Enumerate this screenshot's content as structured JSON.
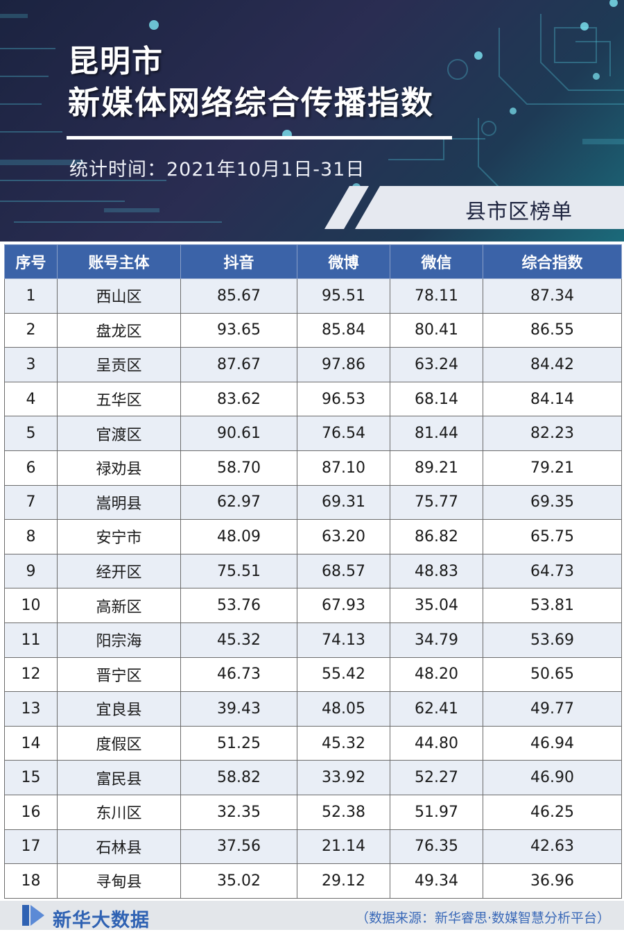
{
  "header": {
    "title_line1": "昆明市",
    "title_line2": "新媒体网络综合传播指数",
    "period": "统计时间：2021年10月1日-31日",
    "rank_label": "县市区榜单"
  },
  "table": {
    "columns": [
      "序号",
      "账号主体",
      "抖音",
      "微博",
      "微信",
      "综合指数"
    ],
    "rows": [
      [
        "1",
        "西山区",
        "85.67",
        "95.51",
        "78.11",
        "87.34"
      ],
      [
        "2",
        "盘龙区",
        "93.65",
        "85.84",
        "80.41",
        "86.55"
      ],
      [
        "3",
        "呈贡区",
        "87.67",
        "97.86",
        "63.24",
        "84.42"
      ],
      [
        "4",
        "五华区",
        "83.62",
        "96.53",
        "68.14",
        "84.14"
      ],
      [
        "5",
        "官渡区",
        "90.61",
        "76.54",
        "81.44",
        "82.23"
      ],
      [
        "6",
        "禄劝县",
        "58.70",
        "87.10",
        "89.21",
        "79.21"
      ],
      [
        "7",
        "嵩明县",
        "62.97",
        "69.31",
        "75.77",
        "69.35"
      ],
      [
        "8",
        "安宁市",
        "48.09",
        "63.20",
        "86.82",
        "65.75"
      ],
      [
        "9",
        "经开区",
        "75.51",
        "68.57",
        "48.83",
        "64.73"
      ],
      [
        "10",
        "高新区",
        "53.76",
        "67.93",
        "35.04",
        "53.81"
      ],
      [
        "11",
        "阳宗海",
        "45.32",
        "74.13",
        "34.79",
        "53.69"
      ],
      [
        "12",
        "晋宁区",
        "46.73",
        "55.42",
        "48.20",
        "50.65"
      ],
      [
        "13",
        "宜良县",
        "39.43",
        "48.05",
        "62.41",
        "49.77"
      ],
      [
        "14",
        "度假区",
        "51.25",
        "45.32",
        "44.80",
        "46.94"
      ],
      [
        "15",
        "富民县",
        "58.82",
        "33.92",
        "52.27",
        "46.90"
      ],
      [
        "16",
        "东川区",
        "32.35",
        "52.38",
        "51.97",
        "46.25"
      ],
      [
        "17",
        "石林县",
        "37.56",
        "21.14",
        "76.35",
        "42.63"
      ],
      [
        "18",
        "寻甸县",
        "35.02",
        "29.12",
        "49.34",
        "36.96"
      ]
    ]
  },
  "footer": {
    "logo_text": "新华大数据",
    "source": "（数据来源：新华睿思·数媒智慧分析平台）"
  },
  "colors": {
    "header_bg": "#3b63a8",
    "row_alt_bg": "#e9eef6",
    "brand_blue": "#2f62b3"
  }
}
